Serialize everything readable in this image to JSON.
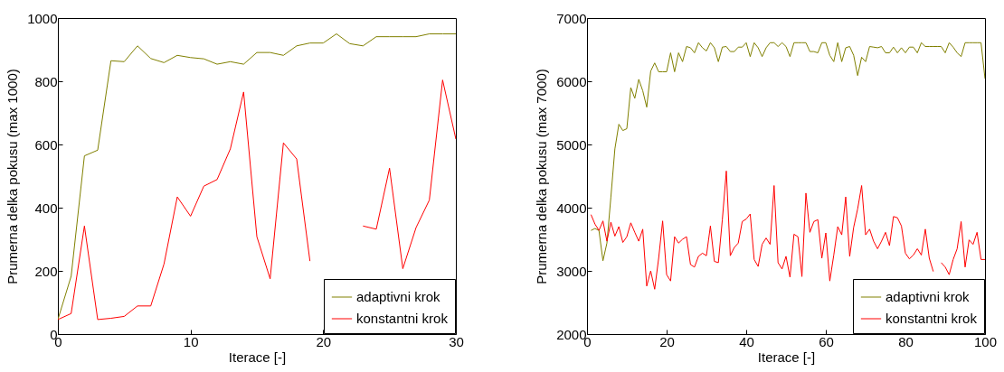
{
  "chart_data": [
    {
      "type": "line",
      "xlabel": "Iterace [-]",
      "ylabel": "Prumerna delka pokusu (max 1000)",
      "xlim": [
        0,
        30
      ],
      "ylim": [
        0,
        1000
      ],
      "xticks": [
        0,
        10,
        20,
        30
      ],
      "yticks": [
        0,
        200,
        400,
        600,
        800,
        1000
      ],
      "grid": false,
      "legend": "bottom right",
      "marker": "none",
      "line_style": "solid",
      "x": [
        0,
        1,
        2,
        3,
        4,
        5,
        6,
        7,
        8,
        9,
        10,
        11,
        12,
        13,
        14,
        15,
        16,
        17,
        18,
        19,
        20,
        21,
        22,
        23,
        24,
        25,
        26,
        27,
        28,
        29,
        30
      ],
      "series": [
        {
          "name": "adaptivni krok",
          "color": "#808000",
          "values": [
            46,
            183,
            564,
            582,
            865,
            862,
            912,
            872,
            859,
            882,
            875,
            871,
            854,
            862,
            854,
            891,
            891,
            882,
            912,
            921,
            921,
            950,
            919,
            912,
            941,
            941,
            941,
            941,
            950,
            950,
            950
          ]
        },
        {
          "name": "konstantni krok",
          "color": "#ff0000",
          "values": [
            46,
            65,
            342,
            46,
            50,
            56,
            89,
            89,
            222,
            434,
            373,
            468,
            489,
            586,
            766,
            308,
            175,
            605,
            554,
            231,
            null,
            null,
            null,
            342,
            332,
            525,
            207,
            337,
            424,
            804,
            617
          ]
        }
      ]
    },
    {
      "type": "line",
      "xlabel": "Iterace [-]",
      "ylabel": "Prumerna delka pokusu (max 7000)",
      "xlim": [
        0,
        100
      ],
      "ylim": [
        2000,
        7000
      ],
      "xticks": [
        0,
        20,
        40,
        60,
        80,
        100
      ],
      "yticks": [
        2000,
        3000,
        4000,
        5000,
        6000,
        7000
      ],
      "grid": false,
      "legend": "bottom right",
      "marker": "none",
      "line_style": "solid",
      "x": [
        1,
        2,
        3,
        4,
        5,
        6,
        7,
        8,
        9,
        10,
        11,
        12,
        13,
        14,
        15,
        16,
        17,
        18,
        19,
        20,
        21,
        22,
        23,
        24,
        25,
        26,
        27,
        28,
        29,
        30,
        31,
        32,
        33,
        34,
        35,
        36,
        37,
        38,
        39,
        40,
        41,
        42,
        43,
        44,
        45,
        46,
        47,
        48,
        49,
        50,
        51,
        52,
        53,
        54,
        55,
        56,
        57,
        58,
        59,
        60,
        61,
        62,
        63,
        64,
        65,
        66,
        67,
        68,
        69,
        70,
        71,
        72,
        73,
        74,
        75,
        76,
        77,
        78,
        79,
        80,
        81,
        82,
        83,
        84,
        85,
        86,
        87,
        88,
        89,
        90,
        91,
        92,
        93,
        94,
        95,
        96,
        97,
        98,
        99,
        100
      ],
      "series": [
        {
          "name": "adaptivni krok",
          "color": "#808000",
          "values": [
            3640,
            3670,
            3640,
            3160,
            3440,
            4170,
            4930,
            5320,
            5220,
            5250,
            5900,
            5730,
            6030,
            5850,
            5590,
            6160,
            6290,
            6150,
            6150,
            6150,
            6450,
            6150,
            6450,
            6310,
            6550,
            6530,
            6450,
            6610,
            6530,
            6480,
            6610,
            6530,
            6310,
            6540,
            6550,
            6470,
            6470,
            6540,
            6540,
            6610,
            6390,
            6610,
            6530,
            6390,
            6530,
            6610,
            6610,
            6550,
            6610,
            6550,
            6390,
            6610,
            6610,
            6610,
            6610,
            6470,
            6470,
            6450,
            6610,
            6610,
            6410,
            6310,
            6610,
            6310,
            6530,
            6550,
            6410,
            6090,
            6380,
            6310,
            6550,
            6540,
            6530,
            6550,
            6450,
            6450,
            6540,
            6450,
            6530,
            6450,
            6540,
            6540,
            6450,
            6610,
            6550,
            6550,
            6550,
            6550,
            6550,
            6450,
            6610,
            6540,
            6450,
            6390,
            6610,
            6610,
            6610,
            6610,
            6610,
            6040
          ]
        },
        {
          "name": "konstantni krok",
          "color": "#ff0000",
          "values": [
            3890,
            3740,
            3640,
            3790,
            3470,
            3770,
            3550,
            3700,
            3450,
            3540,
            3760,
            3610,
            3470,
            3660,
            2760,
            3000,
            2710,
            3200,
            3790,
            2940,
            2840,
            3540,
            3440,
            3500,
            3540,
            3100,
            3060,
            3230,
            3280,
            3240,
            3710,
            3150,
            3130,
            3810,
            4580,
            3240,
            3370,
            3440,
            3780,
            3820,
            3900,
            3180,
            3070,
            3420,
            3520,
            3420,
            4350,
            3130,
            3030,
            3230,
            2900,
            3580,
            3540,
            2910,
            4230,
            3610,
            3780,
            3810,
            3200,
            3600,
            2840,
            3250,
            3700,
            3570,
            4170,
            3230,
            3690,
            3980,
            4350,
            3570,
            3660,
            3470,
            3350,
            3470,
            3610,
            3400,
            3860,
            3840,
            3710,
            3280,
            3190,
            3250,
            3350,
            3250,
            3660,
            3200,
            2990,
            null,
            3130,
            3060,
            2940,
            3180,
            3350,
            3780,
            3060,
            3490,
            3420,
            3610,
            3180,
            3180
          ]
        }
      ]
    }
  ]
}
